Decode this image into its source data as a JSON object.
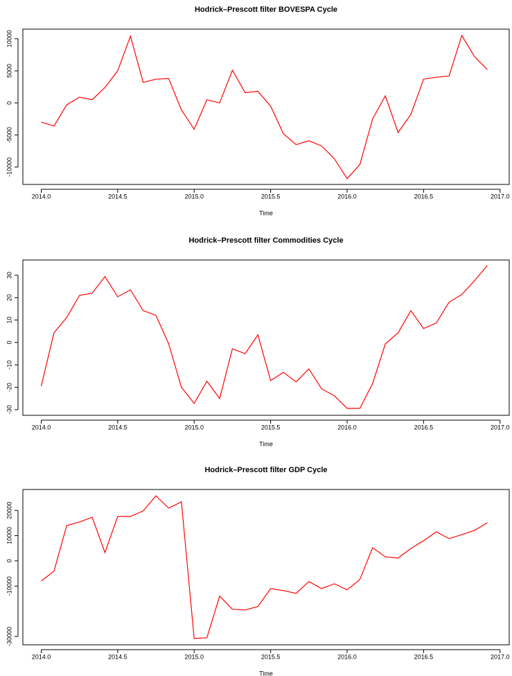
{
  "chart_data": [
    {
      "type": "line",
      "title": "Hodrick–Prescott filter BOVESPA Cycle",
      "x_label": "Time",
      "x": [
        2014,
        2014.0833,
        2014.1667,
        2014.25,
        2014.3333,
        2014.4167,
        2014.5,
        2014.5833,
        2014.6667,
        2014.75,
        2014.8333,
        2014.9167,
        2015,
        2015.0833,
        2015.1667,
        2015.25,
        2015.3333,
        2015.4167,
        2015.5,
        2015.5833,
        2015.6667,
        2015.75,
        2015.8333,
        2015.9167,
        2016,
        2016.0833,
        2016.1667,
        2016.25,
        2016.3333,
        2016.4167,
        2016.5,
        2016.5833,
        2016.6667,
        2016.75,
        2016.8333,
        2016.9167
      ],
      "series": [
        {
          "color": "#ff0000",
          "values": [
            -3000,
            -3600,
            -300,
            900,
            500,
            2400,
            5000,
            10400,
            3200,
            3700,
            3800,
            -1100,
            -4100,
            500,
            0,
            5100,
            1600,
            1800,
            -500,
            -4800,
            -6500,
            -5900,
            -6700,
            -8700,
            -11800,
            -9600,
            -2500,
            1100,
            -4600,
            -1800,
            3700,
            4000,
            4200,
            10500,
            7200,
            5200
          ]
        }
      ],
      "xlim": [
        2013.88,
        2017.06
      ],
      "ylim": [
        -12700,
        11500
      ],
      "xticks": [
        {
          "value": 2014,
          "label": "2014.0"
        },
        {
          "value": 2014.5,
          "label": "2014.5"
        },
        {
          "value": 2015,
          "label": "2015.0"
        },
        {
          "value": 2015.5,
          "label": "2015.5"
        },
        {
          "value": 2016,
          "label": "2016.0"
        },
        {
          "value": 2016.5,
          "label": "2016.5"
        },
        {
          "value": 2017,
          "label": "2017.0"
        }
      ],
      "yticks": [
        -10000,
        -5000,
        0,
        5000,
        10000
      ]
    },
    {
      "type": "line",
      "title": "Hodrick–Prescott filter Commodities Cycle",
      "x_label": "Time",
      "x": [
        2014,
        2014.0833,
        2014.1667,
        2014.25,
        2014.3333,
        2014.4167,
        2014.5,
        2014.5833,
        2014.6667,
        2014.75,
        2014.8333,
        2014.9167,
        2015,
        2015.0833,
        2015.1667,
        2015.25,
        2015.3333,
        2015.4167,
        2015.5,
        2015.5833,
        2015.6667,
        2015.75,
        2015.8333,
        2015.9167,
        2016,
        2016.0833,
        2016.1667,
        2016.25,
        2016.3333,
        2016.4167,
        2016.5,
        2016.5833,
        2016.6667,
        2016.75,
        2016.8333,
        2016.9167
      ],
      "series": [
        {
          "color": "#ff0000",
          "values": [
            -19.5,
            4.3,
            11.1,
            21,
            22,
            29.4,
            20.4,
            23.5,
            14.2,
            12.1,
            -0.6,
            -20,
            -27.2,
            -17.3,
            -25,
            -2.8,
            -5,
            3.4,
            -17,
            -13.3,
            -17.6,
            -11.8,
            -20.7,
            -23.8,
            -29.4,
            -29.4,
            -18.3,
            -0.6,
            4.3,
            14.2,
            6.2,
            8.7,
            18,
            21.4,
            27.6,
            34.4
          ]
        }
      ],
      "xlim": [
        2013.88,
        2017.06
      ],
      "ylim": [
        -32.5,
        36.8
      ],
      "xticks": [
        {
          "value": 2014,
          "label": "2014.0"
        },
        {
          "value": 2014.5,
          "label": "2014.5"
        },
        {
          "value": 2015,
          "label": "2015.0"
        },
        {
          "value": 2015.5,
          "label": "2015.5"
        },
        {
          "value": 2016,
          "label": "2016.0"
        },
        {
          "value": 2016.5,
          "label": "2016.5"
        },
        {
          "value": 2017,
          "label": "2017.0"
        }
      ],
      "yticks": [
        -30,
        -20,
        -10,
        0,
        10,
        20,
        30
      ]
    },
    {
      "type": "line",
      "title": "Hodrick–Prescott filter GDP Cycle",
      "x_label": "Time",
      "x": [
        2014,
        2014.0833,
        2014.1667,
        2014.25,
        2014.3333,
        2014.4167,
        2014.5,
        2014.5833,
        2014.6667,
        2014.75,
        2014.8333,
        2014.9167,
        2015,
        2015.0833,
        2015.1667,
        2015.25,
        2015.3333,
        2015.4167,
        2015.5,
        2015.5833,
        2015.6667,
        2015.75,
        2015.8333,
        2015.9167,
        2016,
        2016.0833,
        2016.1667,
        2016.25,
        2016.3333,
        2016.4167,
        2016.5,
        2016.5833,
        2016.6667,
        2016.75,
        2016.8333,
        2016.9167
      ],
      "series": [
        {
          "color": "#ff0000",
          "values": [
            -8000,
            -4100,
            14000,
            15400,
            17300,
            3300,
            17600,
            17600,
            19800,
            25800,
            20900,
            23400,
            -30800,
            -30500,
            -14000,
            -19200,
            -19500,
            -18100,
            -11000,
            -11800,
            -12900,
            -8200,
            -11000,
            -9100,
            -11500,
            -7400,
            5200,
            1600,
            1100,
            4900,
            8000,
            11500,
            8800,
            10400,
            12100,
            15100
          ]
        }
      ],
      "xlim": [
        2013.88,
        2017.06
      ],
      "ylim": [
        -33300,
        28300
      ],
      "xticks": [
        {
          "value": 2014,
          "label": "2014.0"
        },
        {
          "value": 2014.5,
          "label": "2014.5"
        },
        {
          "value": 2015,
          "label": "2015.0"
        },
        {
          "value": 2015.5,
          "label": "2015.5"
        },
        {
          "value": 2016,
          "label": "2016.0"
        },
        {
          "value": 2016.5,
          "label": "2016.5"
        },
        {
          "value": 2017,
          "label": "2017.0"
        }
      ],
      "yticks": [
        -30000,
        -10000,
        0,
        10000,
        20000
      ]
    }
  ]
}
